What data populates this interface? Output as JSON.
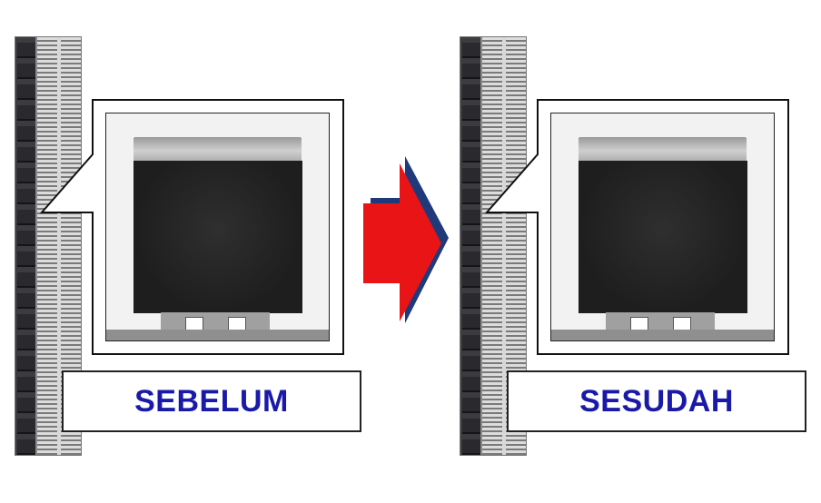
{
  "panels": {
    "before": {
      "label": "SEBELUM"
    },
    "after": {
      "label": "SESUDAH"
    }
  },
  "colors": {
    "label_text": "#1a1aa8",
    "arrow_fill": "#e81416",
    "arrow_shadow": "#1f3a7a"
  },
  "icons": {
    "arrow": "right-arrow-icon"
  }
}
